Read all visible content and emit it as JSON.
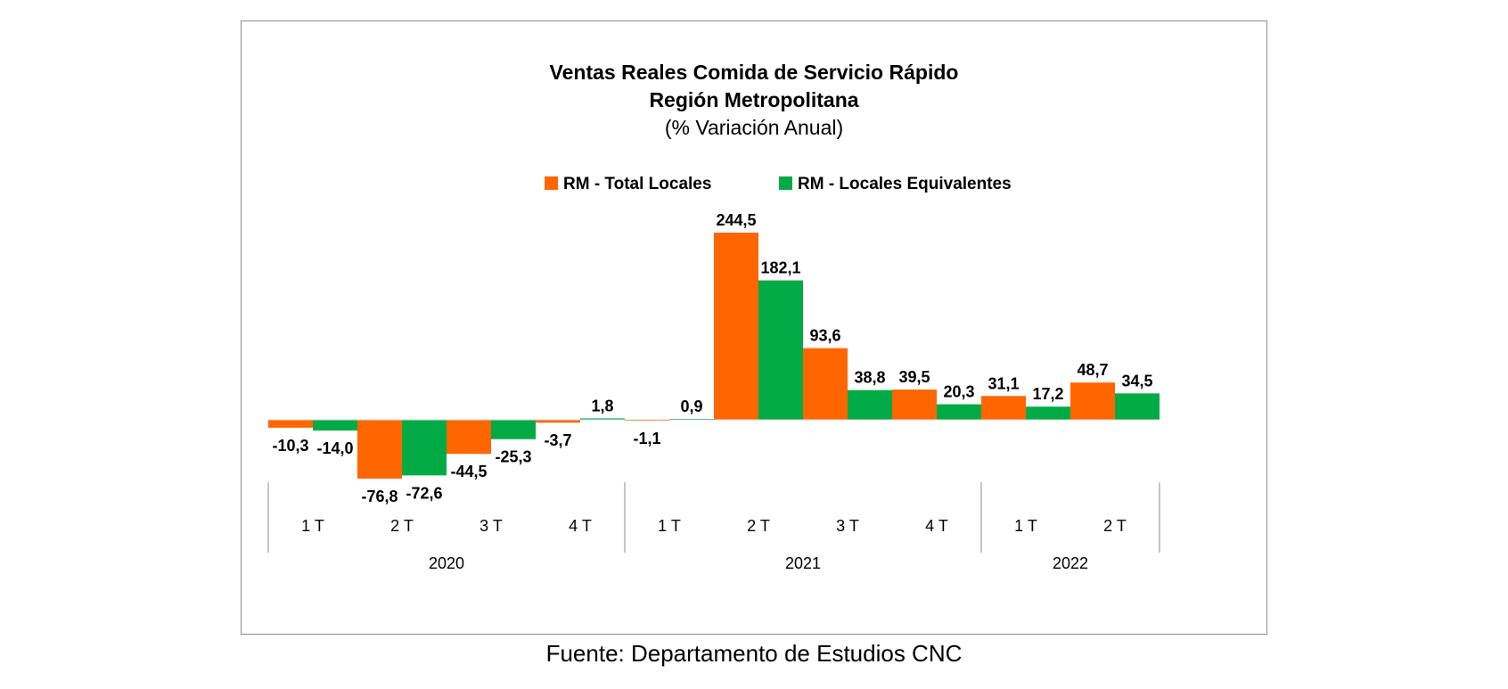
{
  "chart_data": {
    "type": "bar",
    "title": "Ventas Reales Comida de Servicio Rápido",
    "title_line2": "Región Metropolitana",
    "subtitle": "(% Variación Anual)",
    "categories": [
      "1 T",
      "2 T",
      "3 T",
      "4 T",
      "1 T",
      "2 T",
      "3 T",
      "4 T",
      "1 T",
      "2 T"
    ],
    "groups": [
      {
        "label": "2020",
        "count": 4
      },
      {
        "label": "2021",
        "count": 4
      },
      {
        "label": "2022",
        "count": 2
      }
    ],
    "series": [
      {
        "name": "RM - Total Locales",
        "color": "#ff6600",
        "values": [
          -10.3,
          -76.8,
          -44.5,
          -3.7,
          -1.1,
          244.5,
          93.6,
          39.5,
          31.1,
          48.7
        ],
        "labels": [
          "-10,3",
          "-76,8",
          "-44,5",
          "-3,7",
          "-1,1",
          "244,5",
          "93,6",
          "39,5",
          "31,1",
          "48,7"
        ]
      },
      {
        "name": "RM - Locales Equivalentes",
        "color": "#00aa44",
        "values": [
          -14.0,
          -72.6,
          -25.3,
          1.8,
          0.9,
          182.1,
          38.8,
          20.3,
          17.2,
          34.5
        ],
        "labels": [
          "-14,0",
          "-72,6",
          "-25,3",
          "1,8",
          "0,9",
          "182,1",
          "38,8",
          "20,3",
          "17,2",
          "34,5"
        ]
      }
    ],
    "legend_position": "top-center",
    "grid": false
  },
  "source": "Fuente: Departamento de Estudios CNC"
}
